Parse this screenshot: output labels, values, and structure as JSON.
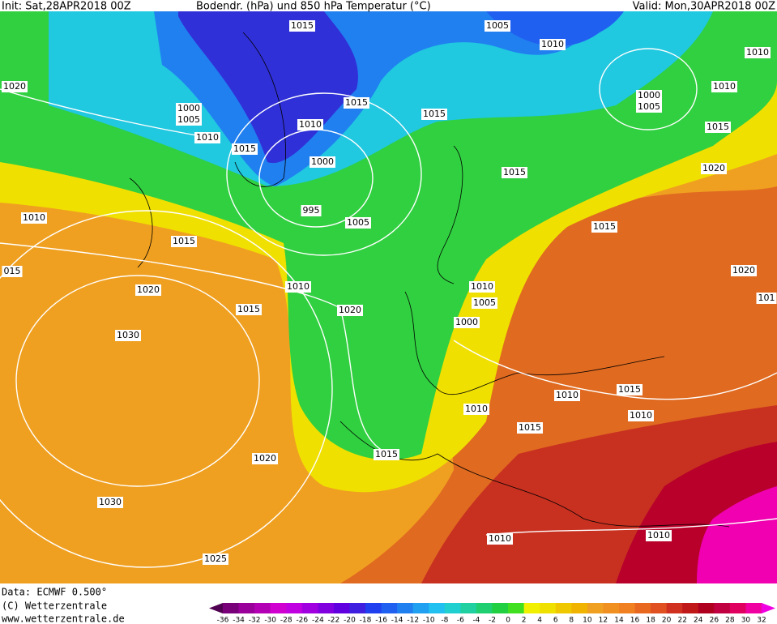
{
  "header": {
    "init": "Init: Sat,28APR2018 00Z",
    "title": "Bodendr. (hPa) und 850 hPa Temperatur (°C)",
    "valid": "Valid: Mon,30APR2018 00Z"
  },
  "isobar_labels": [
    "1015",
    "1005",
    "1010",
    "1010",
    "1020",
    "1000",
    "1005",
    "1010",
    "1015",
    "1015",
    "1010",
    "1015",
    "1000",
    "995",
    "1005",
    "1015",
    "1020",
    "1010",
    "1000",
    "1005",
    "1015",
    "1010",
    "1015",
    "1015",
    "015",
    "1020",
    "1010",
    "1010",
    "1005",
    "1020",
    "1015",
    "1020",
    "1000",
    "1030",
    "1010",
    "1015",
    "1010",
    "1010",
    "1015",
    "1015",
    "1020",
    "1030",
    "1010",
    "1010",
    "1025",
    "101"
  ],
  "footer": {
    "data": "Data: ECMWF  0.500°",
    "copyright": "(C) Wetterzentrale",
    "url": "www.wetterzentrale.de"
  },
  "colorbar": {
    "labels": [
      -36,
      -34,
      -32,
      -30,
      -28,
      -26,
      -24,
      -22,
      -20,
      -18,
      -16,
      -14,
      -12,
      -10,
      -8,
      -6,
      -4,
      -2,
      0,
      2,
      4,
      6,
      8,
      10,
      12,
      14,
      16,
      18,
      20,
      22,
      24,
      26,
      28,
      30,
      32
    ],
    "colors": [
      "#500050",
      "#780078",
      "#9a009a",
      "#b400b4",
      "#d000d0",
      "#c000e0",
      "#a000e0",
      "#8000e0",
      "#6000e0",
      "#4020e0",
      "#2040f0",
      "#2060f0",
      "#2080f0",
      "#20a0f0",
      "#20c0f0",
      "#20d0d0",
      "#20d0a0",
      "#20d070",
      "#20d040",
      "#40e020",
      "#f0f000",
      "#f0e000",
      "#f0c800",
      "#f0b400",
      "#f0a020",
      "#f09020",
      "#f08020",
      "#e86820",
      "#e05020",
      "#d03020",
      "#c01818",
      "#b00020",
      "#c00040",
      "#e00060",
      "#f000a0",
      "#f000e0"
    ]
  }
}
